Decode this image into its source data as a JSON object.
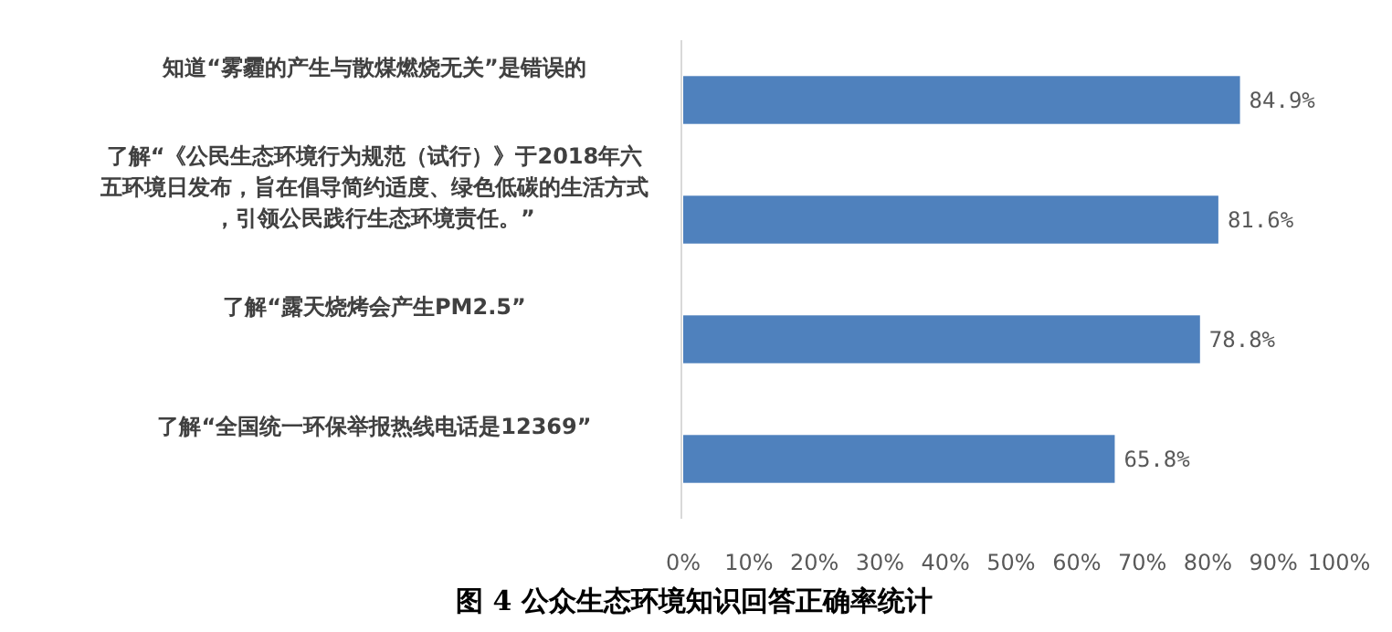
{
  "chart_data": {
    "type": "bar",
    "orientation": "horizontal",
    "title": "图 4 公众生态环境知识回答正确率统计",
    "categories": [
      "知道“雾霾的产生与散煤燃烧无关”是错误的",
      "了解“《公民生态环境行为规范（试行）》于2018年六五环境日发布，旨在倡导简约适度、绿色低碳的生活方式，引领公民践行生态环境责任。”",
      "了解“露天烧烤会产生PM2.5”",
      "了解“全国统一环保举报热线电话是12369”"
    ],
    "values": [
      84.9,
      81.6,
      78.8,
      65.8
    ],
    "value_labels": [
      "84.9%",
      "81.6%",
      "78.8%",
      "65.8%"
    ],
    "color": "#4f81bd",
    "xlim": [
      0,
      100
    ],
    "xticks": [
      {
        "value": 0,
        "label": "0%"
      },
      {
        "value": 10,
        "label": "10%"
      },
      {
        "value": 20,
        "label": "20%"
      },
      {
        "value": 30,
        "label": "30%"
      },
      {
        "value": 40,
        "label": "40%"
      },
      {
        "value": 50,
        "label": "50%"
      },
      {
        "value": 60,
        "label": "60%"
      },
      {
        "value": 70,
        "label": "70%"
      },
      {
        "value": 80,
        "label": "80%"
      },
      {
        "value": 90,
        "label": "90%"
      },
      {
        "value": 100,
        "label": "100%"
      }
    ],
    "grid": false
  }
}
